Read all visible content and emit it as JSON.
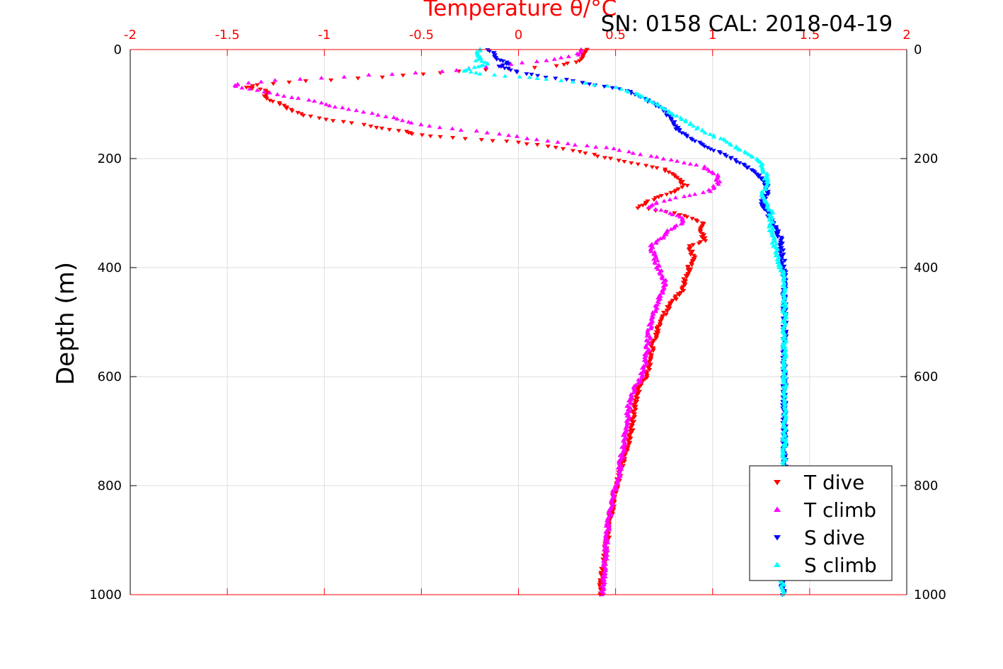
{
  "figure": {
    "title": "Temperature θ/°C",
    "subtitle": "SN: 0158  CAL: 2018-04-19",
    "ylabel": "Depth (m)"
  },
  "colors": {
    "t_dive": "#ff0000",
    "t_climb": "#ff00ff",
    "s_dive": "#0000ff",
    "s_climb": "#00ffff",
    "top_axis": "#ff0000",
    "grid": "#dddddd",
    "text": "#000000"
  },
  "chart_data": {
    "type": "scatter",
    "title": "Temperature θ/°C",
    "ylabel": "Depth (m)",
    "xlim": [
      -2,
      2
    ],
    "ylim": [
      0,
      1000
    ],
    "y_reversed": true,
    "grid": true,
    "legend_position": "bottom-right",
    "x_ticks": [
      "-2",
      "-1.5",
      "-1",
      "-0.5",
      "0",
      "0.5",
      "1",
      "1.5",
      "2"
    ],
    "y_ticks": [
      "0",
      "200",
      "400",
      "600",
      "800",
      "1000"
    ],
    "series": [
      {
        "name": "T dive",
        "marker": "triangle-down",
        "color": "#ff0000",
        "points": [
          [
            0.35,
            0
          ],
          [
            0.33,
            10
          ],
          [
            0.32,
            20
          ],
          [
            0.2,
            30
          ],
          [
            -0.3,
            40
          ],
          [
            -0.7,
            50
          ],
          [
            -1.1,
            58
          ],
          [
            -1.35,
            65
          ],
          [
            -1.4,
            70
          ],
          [
            -1.3,
            75
          ],
          [
            -1.3,
            80
          ],
          [
            -1.3,
            90
          ],
          [
            -1.22,
            100
          ],
          [
            -1.18,
            110
          ],
          [
            -1.1,
            120
          ],
          [
            -0.95,
            130
          ],
          [
            -0.8,
            137
          ],
          [
            -0.7,
            145
          ],
          [
            -0.58,
            150
          ],
          [
            -0.55,
            155
          ],
          [
            -0.4,
            160
          ],
          [
            -0.2,
            165
          ],
          [
            0.0,
            170
          ],
          [
            0.2,
            180
          ],
          [
            0.35,
            190
          ],
          [
            0.48,
            200
          ],
          [
            0.62,
            210
          ],
          [
            0.75,
            220
          ],
          [
            0.8,
            230
          ],
          [
            0.83,
            240
          ],
          [
            0.86,
            250
          ],
          [
            0.8,
            260
          ],
          [
            0.72,
            270
          ],
          [
            0.66,
            280
          ],
          [
            0.62,
            290
          ],
          [
            0.8,
            300
          ],
          [
            0.9,
            310
          ],
          [
            0.96,
            320
          ],
          [
            0.93,
            330
          ],
          [
            0.95,
            340
          ],
          [
            0.96,
            350
          ],
          [
            0.88,
            360
          ],
          [
            0.9,
            380
          ],
          [
            0.88,
            400
          ],
          [
            0.86,
            420
          ],
          [
            0.85,
            440
          ],
          [
            0.8,
            460
          ],
          [
            0.76,
            480
          ],
          [
            0.73,
            500
          ],
          [
            0.7,
            530
          ],
          [
            0.68,
            560
          ],
          [
            0.66,
            600
          ],
          [
            0.62,
            620
          ],
          [
            0.6,
            650
          ],
          [
            0.58,
            700
          ],
          [
            0.54,
            750
          ],
          [
            0.52,
            780
          ],
          [
            0.49,
            820
          ],
          [
            0.47,
            870
          ],
          [
            0.45,
            920
          ],
          [
            0.43,
            970
          ],
          [
            0.42,
            1000
          ]
        ]
      },
      {
        "name": "T climb",
        "marker": "triangle-up",
        "color": "#ff00ff",
        "points": [
          [
            0.33,
            0
          ],
          [
            0.3,
            10
          ],
          [
            0.15,
            20
          ],
          [
            -0.1,
            30
          ],
          [
            -0.4,
            40
          ],
          [
            -0.9,
            50
          ],
          [
            -1.25,
            57
          ],
          [
            -1.45,
            63
          ],
          [
            -1.45,
            68
          ],
          [
            -1.35,
            75
          ],
          [
            -1.2,
            85
          ],
          [
            -1.05,
            95
          ],
          [
            -0.95,
            105
          ],
          [
            -0.8,
            115
          ],
          [
            -0.65,
            125
          ],
          [
            -0.55,
            135
          ],
          [
            -0.35,
            145
          ],
          [
            -0.1,
            155
          ],
          [
            0.1,
            165
          ],
          [
            0.3,
            175
          ],
          [
            0.45,
            180
          ],
          [
            0.6,
            190
          ],
          [
            0.75,
            200
          ],
          [
            0.95,
            215
          ],
          [
            1.02,
            230
          ],
          [
            1.03,
            245
          ],
          [
            0.98,
            260
          ],
          [
            0.85,
            270
          ],
          [
            0.72,
            280
          ],
          [
            0.68,
            290
          ],
          [
            0.78,
            300
          ],
          [
            0.85,
            310
          ],
          [
            0.83,
            320
          ],
          [
            0.78,
            330
          ],
          [
            0.74,
            345
          ],
          [
            0.68,
            360
          ],
          [
            0.7,
            380
          ],
          [
            0.72,
            400
          ],
          [
            0.75,
            420
          ],
          [
            0.75,
            440
          ],
          [
            0.72,
            460
          ],
          [
            0.7,
            480
          ],
          [
            0.68,
            500
          ],
          [
            0.67,
            530
          ],
          [
            0.66,
            560
          ],
          [
            0.65,
            580
          ],
          [
            0.63,
            600
          ],
          [
            0.6,
            620
          ],
          [
            0.57,
            650
          ],
          [
            0.55,
            700
          ],
          [
            0.53,
            750
          ],
          [
            0.51,
            790
          ],
          [
            0.48,
            830
          ],
          [
            0.46,
            870
          ],
          [
            0.45,
            920
          ],
          [
            0.44,
            970
          ],
          [
            0.43,
            1000
          ]
        ]
      },
      {
        "name": "S dive",
        "marker": "triangle-down",
        "color": "#0000ff",
        "points": [
          [
            -0.15,
            0
          ],
          [
            -0.12,
            10
          ],
          [
            -0.1,
            20
          ],
          [
            -0.05,
            25
          ],
          [
            -0.1,
            30
          ],
          [
            -0.05,
            35
          ],
          [
            0.0,
            42
          ],
          [
            0.1,
            48
          ],
          [
            0.25,
            55
          ],
          [
            0.4,
            65
          ],
          [
            0.55,
            75
          ],
          [
            0.62,
            85
          ],
          [
            0.7,
            100
          ],
          [
            0.75,
            110
          ],
          [
            0.78,
            125
          ],
          [
            0.8,
            135
          ],
          [
            0.83,
            150
          ],
          [
            0.9,
            165
          ],
          [
            0.98,
            180
          ],
          [
            1.05,
            190
          ],
          [
            1.1,
            200
          ],
          [
            1.15,
            210
          ],
          [
            1.2,
            220
          ],
          [
            1.25,
            235
          ],
          [
            1.28,
            250
          ],
          [
            1.28,
            265
          ],
          [
            1.25,
            280
          ],
          [
            1.28,
            295
          ],
          [
            1.3,
            310
          ],
          [
            1.33,
            330
          ],
          [
            1.35,
            350
          ],
          [
            1.36,
            380
          ],
          [
            1.37,
            410
          ],
          [
            1.37,
            440
          ],
          [
            1.37,
            480
          ],
          [
            1.37,
            550
          ],
          [
            1.37,
            650
          ],
          [
            1.37,
            750
          ],
          [
            1.37,
            850
          ],
          [
            1.36,
            950
          ],
          [
            1.36,
            1000
          ]
        ]
      },
      {
        "name": "S climb",
        "marker": "triangle-up",
        "color": "#00ffff",
        "points": [
          [
            -0.2,
            0
          ],
          [
            -0.22,
            10
          ],
          [
            -0.2,
            15
          ],
          [
            -0.22,
            20
          ],
          [
            -0.15,
            25
          ],
          [
            -0.2,
            30
          ],
          [
            -0.25,
            35
          ],
          [
            -0.28,
            40
          ],
          [
            -0.2,
            45
          ],
          [
            0.0,
            50
          ],
          [
            0.15,
            55
          ],
          [
            0.35,
            62
          ],
          [
            0.5,
            70
          ],
          [
            0.6,
            80
          ],
          [
            0.68,
            95
          ],
          [
            0.78,
            115
          ],
          [
            0.83,
            125
          ],
          [
            0.9,
            140
          ],
          [
            0.98,
            155
          ],
          [
            1.05,
            165
          ],
          [
            1.1,
            175
          ],
          [
            1.15,
            185
          ],
          [
            1.2,
            195
          ],
          [
            1.24,
            205
          ],
          [
            1.27,
            225
          ],
          [
            1.28,
            245
          ],
          [
            1.25,
            265
          ],
          [
            1.28,
            280
          ],
          [
            1.3,
            300
          ],
          [
            1.3,
            330
          ],
          [
            1.32,
            360
          ],
          [
            1.34,
            390
          ],
          [
            1.36,
            410
          ],
          [
            1.37,
            440
          ],
          [
            1.37,
            500
          ],
          [
            1.37,
            600
          ],
          [
            1.37,
            700
          ],
          [
            1.37,
            800
          ],
          [
            1.36,
            900
          ],
          [
            1.36,
            1000
          ]
        ]
      }
    ]
  }
}
